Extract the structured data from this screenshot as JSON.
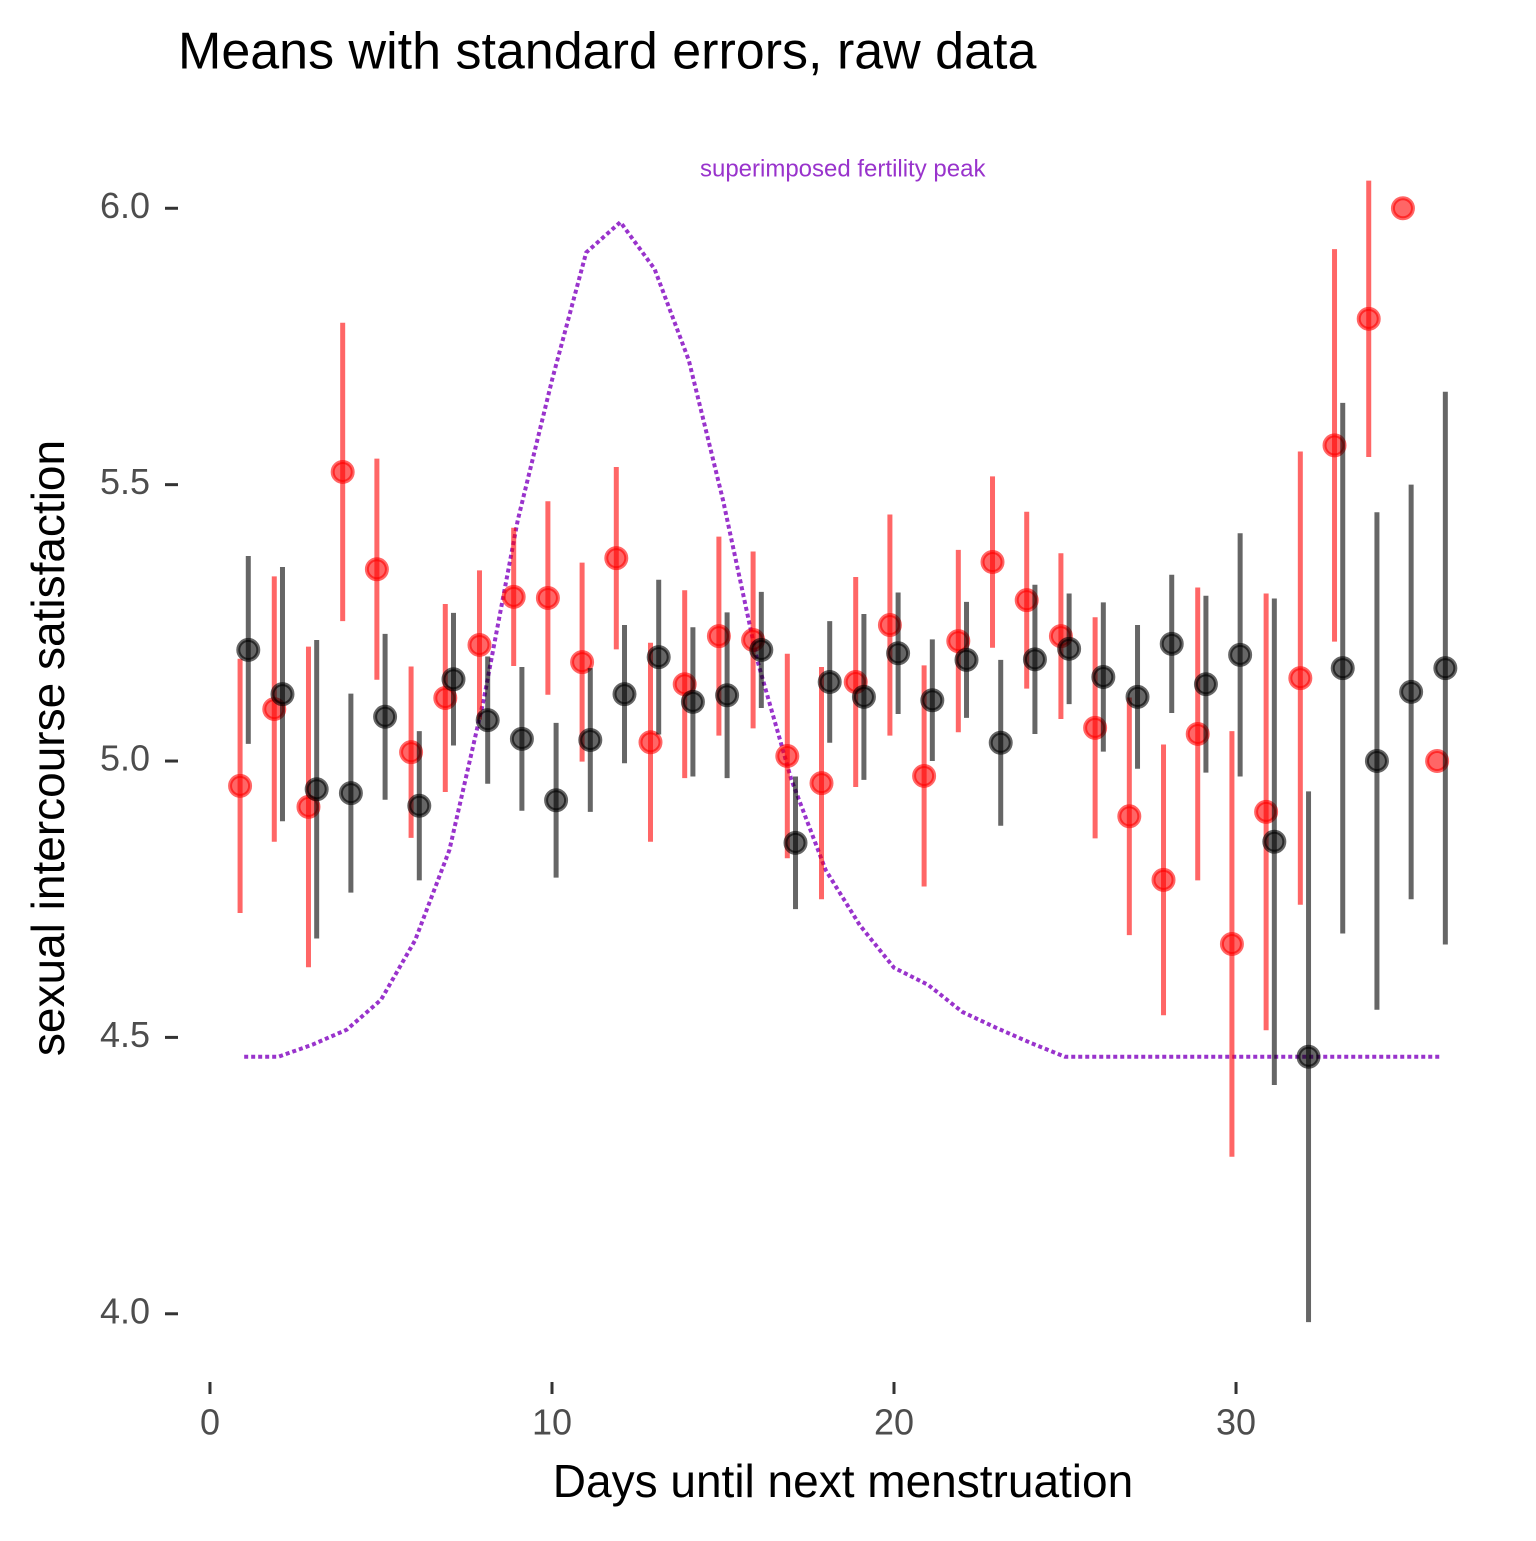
{
  "chart_data": {
    "type": "scatter",
    "title": "Means with standard errors, raw data",
    "x_label": "Days until next menstruation",
    "y_label": "sexual intercourse satisfaction",
    "annotation": "superimposed fertility peak",
    "x": [
      1,
      2,
      3,
      4,
      5,
      6,
      7,
      8,
      9,
      10,
      11,
      12,
      13,
      14,
      15,
      16,
      17,
      18,
      19,
      20,
      21,
      22,
      23,
      24,
      25,
      26,
      27,
      28,
      29,
      30,
      31,
      32,
      33,
      34,
      35,
      36
    ],
    "series": [
      {
        "color": "#ff0000",
        "values": [
          4.955,
          5.094,
          4.917,
          5.523,
          5.347,
          5.016,
          5.114,
          5.21,
          5.297,
          5.295,
          5.179,
          5.367,
          5.034,
          5.139,
          5.226,
          5.219,
          5.009,
          4.96,
          5.143,
          5.246,
          4.973,
          5.217,
          5.36,
          5.291,
          5.226,
          5.06,
          4.9,
          4.785,
          5.049,
          4.669,
          4.908,
          5.15,
          5.571,
          5.8,
          6.0,
          5.0
        ],
        "errors": [
          0.23,
          0.24,
          0.29,
          0.27,
          0.2,
          0.155,
          0.17,
          0.135,
          0.125,
          0.175,
          0.18,
          0.165,
          0.18,
          0.17,
          0.18,
          0.16,
          0.185,
          0.21,
          0.19,
          0.2,
          0.2,
          0.165,
          0.155,
          0.16,
          0.15,
          0.2,
          0.215,
          0.245,
          0.265,
          0.385,
          0.395,
          0.41,
          0.355,
          0.25,
          null,
          null
        ]
      },
      {
        "color": "#000000",
        "values": [
          5.201,
          5.121,
          4.949,
          4.942,
          5.08,
          4.919,
          5.148,
          5.074,
          5.04,
          4.929,
          5.038,
          5.121,
          5.188,
          5.107,
          5.119,
          5.201,
          4.852,
          5.143,
          5.116,
          5.195,
          5.11,
          5.183,
          5.033,
          5.184,
          5.203,
          5.152,
          5.116,
          5.212,
          5.139,
          5.192,
          4.854,
          4.465,
          5.168,
          5.0,
          5.125,
          5.168
        ],
        "errors": [
          0.17,
          0.23,
          0.27,
          0.18,
          0.15,
          0.135,
          0.12,
          0.115,
          0.13,
          0.14,
          0.13,
          0.125,
          0.14,
          0.135,
          0.15,
          0.105,
          0.12,
          0.11,
          0.15,
          0.11,
          0.11,
          0.105,
          0.15,
          0.135,
          0.1,
          0.135,
          0.13,
          0.125,
          0.16,
          0.22,
          0.44,
          0.48,
          0.48,
          0.45,
          0.375,
          0.5
        ]
      }
    ],
    "fertility": {
      "color": "#9933cc",
      "values": [
        4.465,
        4.465,
        4.487,
        4.514,
        4.568,
        4.676,
        4.839,
        5.11,
        5.436,
        5.689,
        5.92,
        5.975,
        5.89,
        5.725,
        5.472,
        5.183,
        4.966,
        4.803,
        4.703,
        4.626,
        4.595,
        4.546,
        4.517,
        4.49,
        4.465,
        4.465,
        4.465,
        4.465,
        4.465,
        4.465,
        4.465,
        4.465,
        4.465,
        4.465,
        4.465,
        4.465
      ]
    },
    "xlim": [
      -0.9,
      37.8
    ],
    "ylim": [
      3.92,
      6.1
    ],
    "xticks": [
      0,
      10,
      20,
      30
    ],
    "yticks": [
      {
        "value": 4,
        "label": "4.0"
      },
      {
        "value": 4.5,
        "label": "4.5"
      },
      {
        "value": 5,
        "label": "5.0"
      },
      {
        "value": 5.5,
        "label": "5.5"
      },
      {
        "value": 6,
        "label": "6.0"
      }
    ]
  }
}
